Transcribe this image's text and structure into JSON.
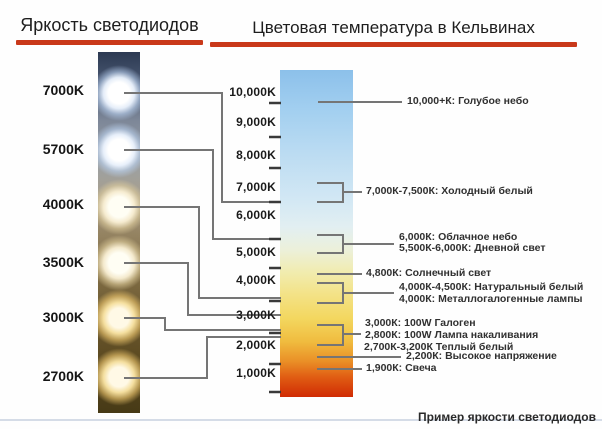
{
  "left_panel": {
    "title": "Яркость светодиодов",
    "led_labels": [
      "7000K",
      "5700K",
      "4000K",
      "3500K",
      "3000K",
      "2700K"
    ]
  },
  "right_panel": {
    "title": "Цветовая температура в Кельвинах",
    "scale_labels": [
      "10,000K",
      "9,000K",
      "8,000K",
      "7,000K",
      "6,000K",
      "5,000K",
      "4,000K",
      "3,000K",
      "2,000K",
      "1,000K"
    ],
    "annotations": [
      "10,000+К: Голубое небо",
      "7,000К-7,500К: Холодный белый",
      "6,000К: Облачное небо",
      "5,500К-6,000К: Дневной свет",
      "4,800К: Солнечный свет",
      "4,000К-4,500К: Натуральный белый",
      "4,000К: Металлогалогенные лампы",
      "3,000К: 100W Галоген",
      "2,800К: 100W Лампа накаливания",
      "2,700К-3,200К Теплый белый",
      "2,200К: Высокое напряжение",
      "1,900К: Свеча"
    ]
  },
  "footer": {
    "caption": "Пример яркости светодиодов"
  },
  "colors": {
    "accent_rule": "#c9391a",
    "connector_line": "#757575",
    "scale_top_blue": "#8cc0ea",
    "scale_bottom_red": "#d02b04"
  }
}
